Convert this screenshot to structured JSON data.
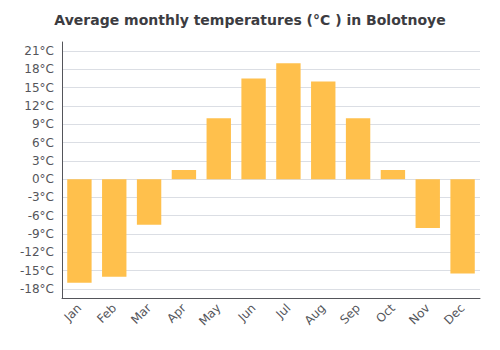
{
  "chart_data": {
    "type": "bar",
    "title": "Average monthly temperatures (°C ) in Bolotnoye",
    "categories": [
      "Jan",
      "Feb",
      "Mar",
      "Apr",
      "May",
      "Jun",
      "Jul",
      "Aug",
      "Sep",
      "Oct",
      "Nov",
      "Dec"
    ],
    "values": [
      -17,
      -16,
      -7.5,
      1.5,
      10,
      16.5,
      19,
      16,
      10,
      1.5,
      -8,
      -15.5
    ],
    "color": "#FFC04C",
    "ylim": [
      -19.5,
      22.5
    ],
    "yticks": [
      {
        "value": -18,
        "label": "-18°C"
      },
      {
        "value": -15,
        "label": "-15°C"
      },
      {
        "value": -12,
        "label": "-12°C"
      },
      {
        "value": -9,
        "label": "-9°C"
      },
      {
        "value": -6,
        "label": "-6°C"
      },
      {
        "value": -3,
        "label": "-3°C"
      },
      {
        "value": 0,
        "label": "0°C"
      },
      {
        "value": 3,
        "label": "3°C"
      },
      {
        "value": 6,
        "label": "6°C"
      },
      {
        "value": 9,
        "label": "9°C"
      },
      {
        "value": 12,
        "label": "12°C"
      },
      {
        "value": 15,
        "label": "15°C"
      },
      {
        "value": 18,
        "label": "18°C"
      },
      {
        "value": 21,
        "label": "21°C"
      }
    ],
    "grid": true
  }
}
